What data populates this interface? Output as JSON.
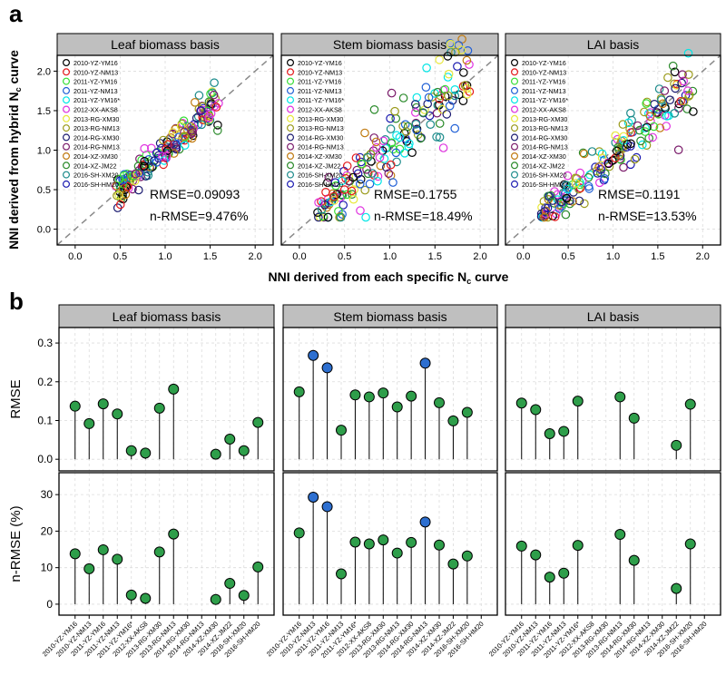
{
  "panel_labels": {
    "a": "a",
    "b": "b"
  },
  "sites": [
    "2010-YZ-YM16",
    "2010-YZ-NM13",
    "2011-YZ-YM16",
    "2011-YZ-NM13",
    "2011-YZ-YM16*",
    "2012-XX-AKS8",
    "2013-RG-XM30",
    "2013-RG-NM13",
    "2014-RG-XM30",
    "2014-RG-NM13",
    "2014-XZ-XM30",
    "2014-XZ-JM22",
    "2016-SH-XM20",
    "2016-SH-HM20"
  ],
  "site_colors": [
    "#000000",
    "#e41a1c",
    "#33dd33",
    "#1f5fd6",
    "#00e5e5",
    "#e033e0",
    "#e8e83a",
    "#9a9a1a",
    "#1a1a70",
    "#7a1a6a",
    "#c07a10",
    "#2a8a2a",
    "#1a8a8a",
    "#1a1ab0"
  ],
  "shared_xlabel": "NNI derived from each specific N",
  "shared_xlabel_sub": "c",
  "shared_xlabel_tail": " curve",
  "shared_ylabel": "NNI derived from hybrid N",
  "shared_ylabel_sub": "c",
  "shared_ylabel_tail": " curve",
  "chart_data": [
    {
      "type": "scatter",
      "title": "Leaf biomass basis",
      "xlim": [
        -0.2,
        2.2
      ],
      "ylim": [
        -0.2,
        2.2
      ],
      "ticks": [
        0.0,
        0.5,
        1.0,
        1.5,
        2.0
      ],
      "tick_labels": [
        "0.0",
        "0.5",
        "1.0",
        "1.5",
        "2.0"
      ],
      "reference_line": "1:1 dashed",
      "stats": [
        "RMSE=0.09093",
        "n-RMSE=9.476%"
      ],
      "cluster": {
        "x_range": [
          0.45,
          1.6
        ],
        "slope": 1.0,
        "spread": 0.1
      }
    },
    {
      "type": "scatter",
      "title": "Stem biomass basis",
      "xlim": [
        -0.2,
        2.2
      ],
      "ylim": [
        -0.2,
        2.2
      ],
      "ticks": [
        0.0,
        0.5,
        1.0,
        1.5,
        2.0
      ],
      "tick_labels": [
        "0.0",
        "0.5",
        "1.0",
        "1.5",
        "2.0"
      ],
      "reference_line": "1:1 dashed",
      "stats": [
        "RMSE=0.1755",
        "n-RMSE=18.49%"
      ],
      "cluster": {
        "x_range": [
          0.2,
          1.9
        ],
        "slope": 1.05,
        "spread": 0.22
      }
    },
    {
      "type": "scatter",
      "title": "LAI basis",
      "xlim": [
        -0.2,
        2.2
      ],
      "ylim": [
        -0.2,
        2.2
      ],
      "ticks": [
        0.0,
        0.5,
        1.0,
        1.5,
        2.0
      ],
      "tick_labels": [
        "0.0",
        "0.5",
        "1.0",
        "1.5",
        "2.0"
      ],
      "reference_line": "1:1 dashed",
      "stats": [
        "RMSE=0.1191",
        "n-RMSE=13.53%"
      ],
      "cluster": {
        "x_range": [
          0.2,
          1.9
        ],
        "slope": 0.95,
        "spread": 0.15
      }
    },
    {
      "type": "lollipop",
      "title": "Leaf biomass basis",
      "ylabel": "RMSE",
      "ylim": [
        -0.03,
        0.34
      ],
      "yticks": [
        0.0,
        0.1,
        0.2,
        0.3
      ],
      "ytick_labels": [
        "0.0",
        "0.1",
        "0.2",
        "0.3"
      ],
      "values": [
        0.137,
        0.092,
        0.143,
        0.117,
        0.022,
        0.016,
        0.132,
        0.181,
        null,
        null,
        0.013,
        0.052,
        0.022,
        0.095
      ],
      "highlight": [
        false,
        false,
        false,
        false,
        false,
        false,
        false,
        false,
        false,
        false,
        false,
        false,
        false,
        false
      ]
    },
    {
      "type": "lollipop",
      "title": "Stem biomass basis",
      "ylabel": "RMSE",
      "ylim": [
        -0.03,
        0.34
      ],
      "yticks": [
        0.0,
        0.1,
        0.2,
        0.3
      ],
      "ytick_labels": [
        "0.0",
        "0.1",
        "0.2",
        "0.3"
      ],
      "values": [
        0.174,
        0.268,
        0.236,
        0.075,
        0.166,
        0.161,
        0.171,
        0.135,
        0.163,
        0.248,
        0.146,
        0.099,
        0.121,
        null
      ],
      "highlight": [
        false,
        true,
        true,
        false,
        false,
        false,
        false,
        false,
        false,
        true,
        false,
        false,
        false,
        false
      ]
    },
    {
      "type": "lollipop",
      "title": "LAI basis",
      "ylabel": "RMSE",
      "ylim": [
        -0.03,
        0.34
      ],
      "yticks": [
        0.0,
        0.1,
        0.2,
        0.3
      ],
      "ytick_labels": [
        "0.0",
        "0.1",
        "0.2",
        "0.3"
      ],
      "values": [
        0.145,
        0.128,
        0.066,
        0.072,
        0.15,
        null,
        null,
        0.161,
        0.106,
        null,
        null,
        0.036,
        0.142,
        null
      ],
      "highlight": [
        false,
        false,
        false,
        false,
        false,
        false,
        false,
        false,
        false,
        false,
        false,
        false,
        false,
        false
      ]
    },
    {
      "type": "lollipop",
      "title": "Leaf biomass basis",
      "ylabel": "n-RMSE (%)",
      "ylim": [
        -3,
        36
      ],
      "yticks": [
        0,
        10,
        20,
        30
      ],
      "ytick_labels": [
        "0",
        "10",
        "20",
        "30"
      ],
      "values": [
        13.8,
        9.7,
        14.9,
        12.3,
        2.5,
        1.6,
        14.3,
        19.2,
        null,
        null,
        1.3,
        5.7,
        2.4,
        10.2
      ],
      "highlight": [
        false,
        false,
        false,
        false,
        false,
        false,
        false,
        false,
        false,
        false,
        false,
        false,
        false,
        false
      ]
    },
    {
      "type": "lollipop",
      "title": "Stem biomass basis",
      "ylabel": "n-RMSE (%)",
      "ylim": [
        -3,
        36
      ],
      "yticks": [
        0,
        10,
        20,
        30
      ],
      "ytick_labels": [
        "0",
        "10",
        "20",
        "30"
      ],
      "values": [
        19.5,
        29.3,
        26.7,
        8.3,
        17.0,
        16.5,
        17.6,
        14.0,
        16.9,
        22.5,
        16.2,
        11.0,
        13.2,
        null
      ],
      "highlight": [
        false,
        true,
        true,
        false,
        false,
        false,
        false,
        false,
        false,
        true,
        false,
        false,
        false,
        false
      ]
    },
    {
      "type": "lollipop",
      "title": "LAI basis",
      "ylabel": "n-RMSE (%)",
      "ylim": [
        -3,
        36
      ],
      "yticks": [
        0,
        10,
        20,
        30
      ],
      "ytick_labels": [
        "0",
        "10",
        "20",
        "30"
      ],
      "values": [
        15.9,
        13.5,
        7.4,
        8.5,
        16.1,
        null,
        null,
        19.1,
        12.0,
        null,
        null,
        4.3,
        16.5,
        null
      ],
      "highlight": [
        false,
        false,
        false,
        false,
        false,
        false,
        false,
        false,
        false,
        false,
        false,
        false,
        false,
        false
      ]
    }
  ],
  "colors": {
    "marker_normal": "#2e9e4a",
    "marker_highlight": "#2d6fd0",
    "strip_bg": "#bfbfbf",
    "grid": "#dcdcdc",
    "refline": "#8a8a8a"
  }
}
